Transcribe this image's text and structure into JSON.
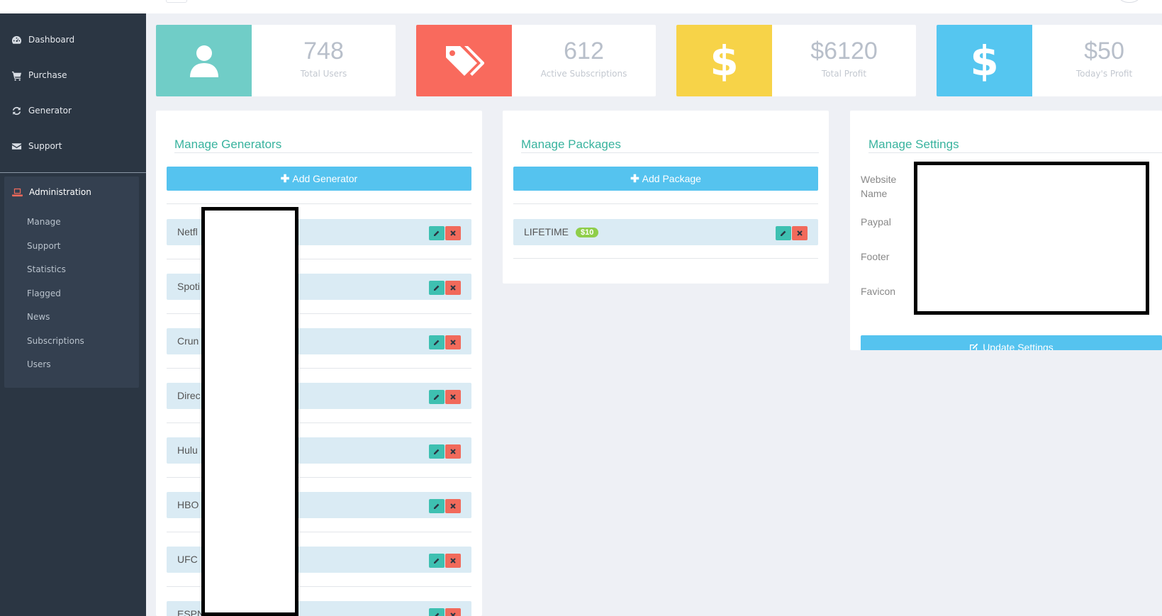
{
  "sidebar": {
    "items": [
      {
        "label": "Dashboard",
        "icon": "dashboard-icon"
      },
      {
        "label": "Purchase",
        "icon": "cart-icon"
      },
      {
        "label": "Generator",
        "icon": "refresh-icon"
      },
      {
        "label": "Support",
        "icon": "envelope-icon"
      }
    ],
    "admin": {
      "label": "Administration",
      "icon": "laptop-icon",
      "icon_color": "#f16a5b",
      "sub_items": [
        "Manage",
        "Support",
        "Statistics",
        "Flagged",
        "News",
        "Subscriptions",
        "Users"
      ]
    }
  },
  "stats": [
    {
      "value": "748",
      "label": "Total Users",
      "color": "#70cdc7",
      "icon": "user-icon"
    },
    {
      "value": "612",
      "label": "Active Subscriptions",
      "color": "#f96a5d",
      "icon": "tags-icon"
    },
    {
      "value": "$6120",
      "label": "Total Profit",
      "color": "#f7d348",
      "icon": "dollar-icon"
    },
    {
      "value": "$50",
      "label": "Today's Profit",
      "color": "#55c6f0",
      "icon": "dollar-icon"
    }
  ],
  "generators": {
    "title": "Manage Generators",
    "add_label": "Add Generator",
    "items": [
      "Netfl",
      "Spoti",
      "Crun",
      "Direc",
      "Hulu",
      "HBO",
      "UFC",
      "ESPN"
    ]
  },
  "packages": {
    "title": "Manage Packages",
    "add_label": "Add Package",
    "items": [
      {
        "name": "LIFETIME",
        "price": "$10"
      }
    ]
  },
  "settings": {
    "title": "Manage Settings",
    "fields": [
      "Website Name",
      "Paypal",
      "Footer",
      "Favicon"
    ],
    "update_label": "Update Settings"
  },
  "colors": {
    "accent_green": "#38b39e",
    "button_blue": "#55c3ef",
    "edit_teal": "#3ec0b1",
    "delete_red": "#f16a5b",
    "sidebar_bg": "#2b3643"
  }
}
